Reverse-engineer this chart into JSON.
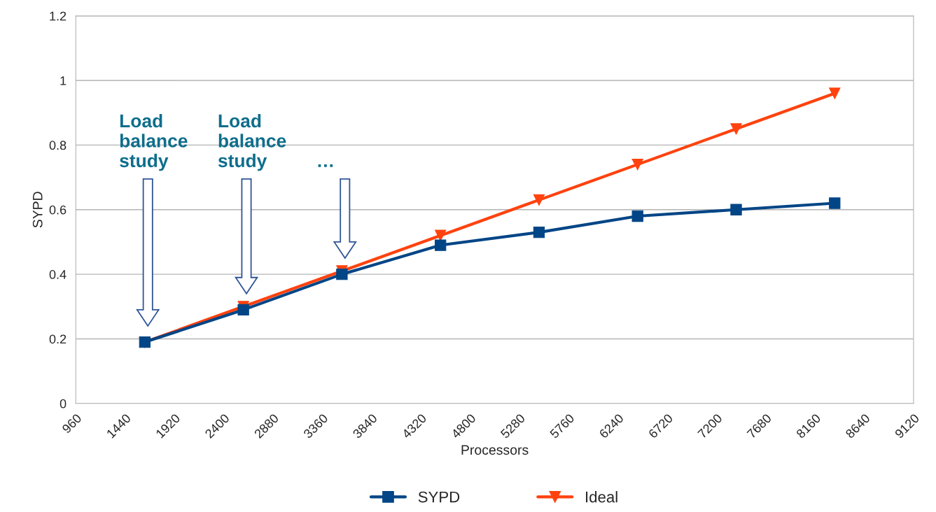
{
  "chart_data": {
    "type": "line",
    "xlabel": "Processors",
    "ylabel": "SYPD",
    "x": [
      1632,
      2592,
      3552,
      4512,
      5472,
      6432,
      7392,
      8352
    ],
    "series": [
      {
        "name": "SYPD",
        "color": "#004586",
        "marker": "square",
        "values": [
          0.19,
          0.29,
          0.4,
          0.49,
          0.53,
          0.58,
          0.6,
          0.62
        ]
      },
      {
        "name": "Ideal",
        "color": "#ff420e",
        "marker": "triangle_down",
        "values": [
          0.19,
          0.3,
          0.41,
          0.52,
          0.63,
          0.74,
          0.85,
          0.96
        ]
      }
    ],
    "xlim": [
      960,
      9120
    ],
    "xticks": [
      960,
      1440,
      1920,
      2400,
      2880,
      3360,
      3840,
      4320,
      4800,
      5280,
      5760,
      6240,
      6720,
      7200,
      7680,
      8160,
      8640,
      9120
    ],
    "ylim": [
      0,
      1.2
    ],
    "yticks": [
      0,
      {
        "value": 0.2,
        "label": "0.2"
      },
      {
        "value": 0.4,
        "label": "0.4"
      },
      {
        "value": 0.6,
        "label": "0.6"
      },
      {
        "value": 0.8,
        "label": "0.8"
      },
      1,
      {
        "value": 1.2,
        "label": "1.2"
      }
    ],
    "grid": "y",
    "legend": "bottom",
    "annotations": [
      "Load\nbalance\nstudy",
      "Load\nbalance\nstudy",
      "…"
    ]
  }
}
